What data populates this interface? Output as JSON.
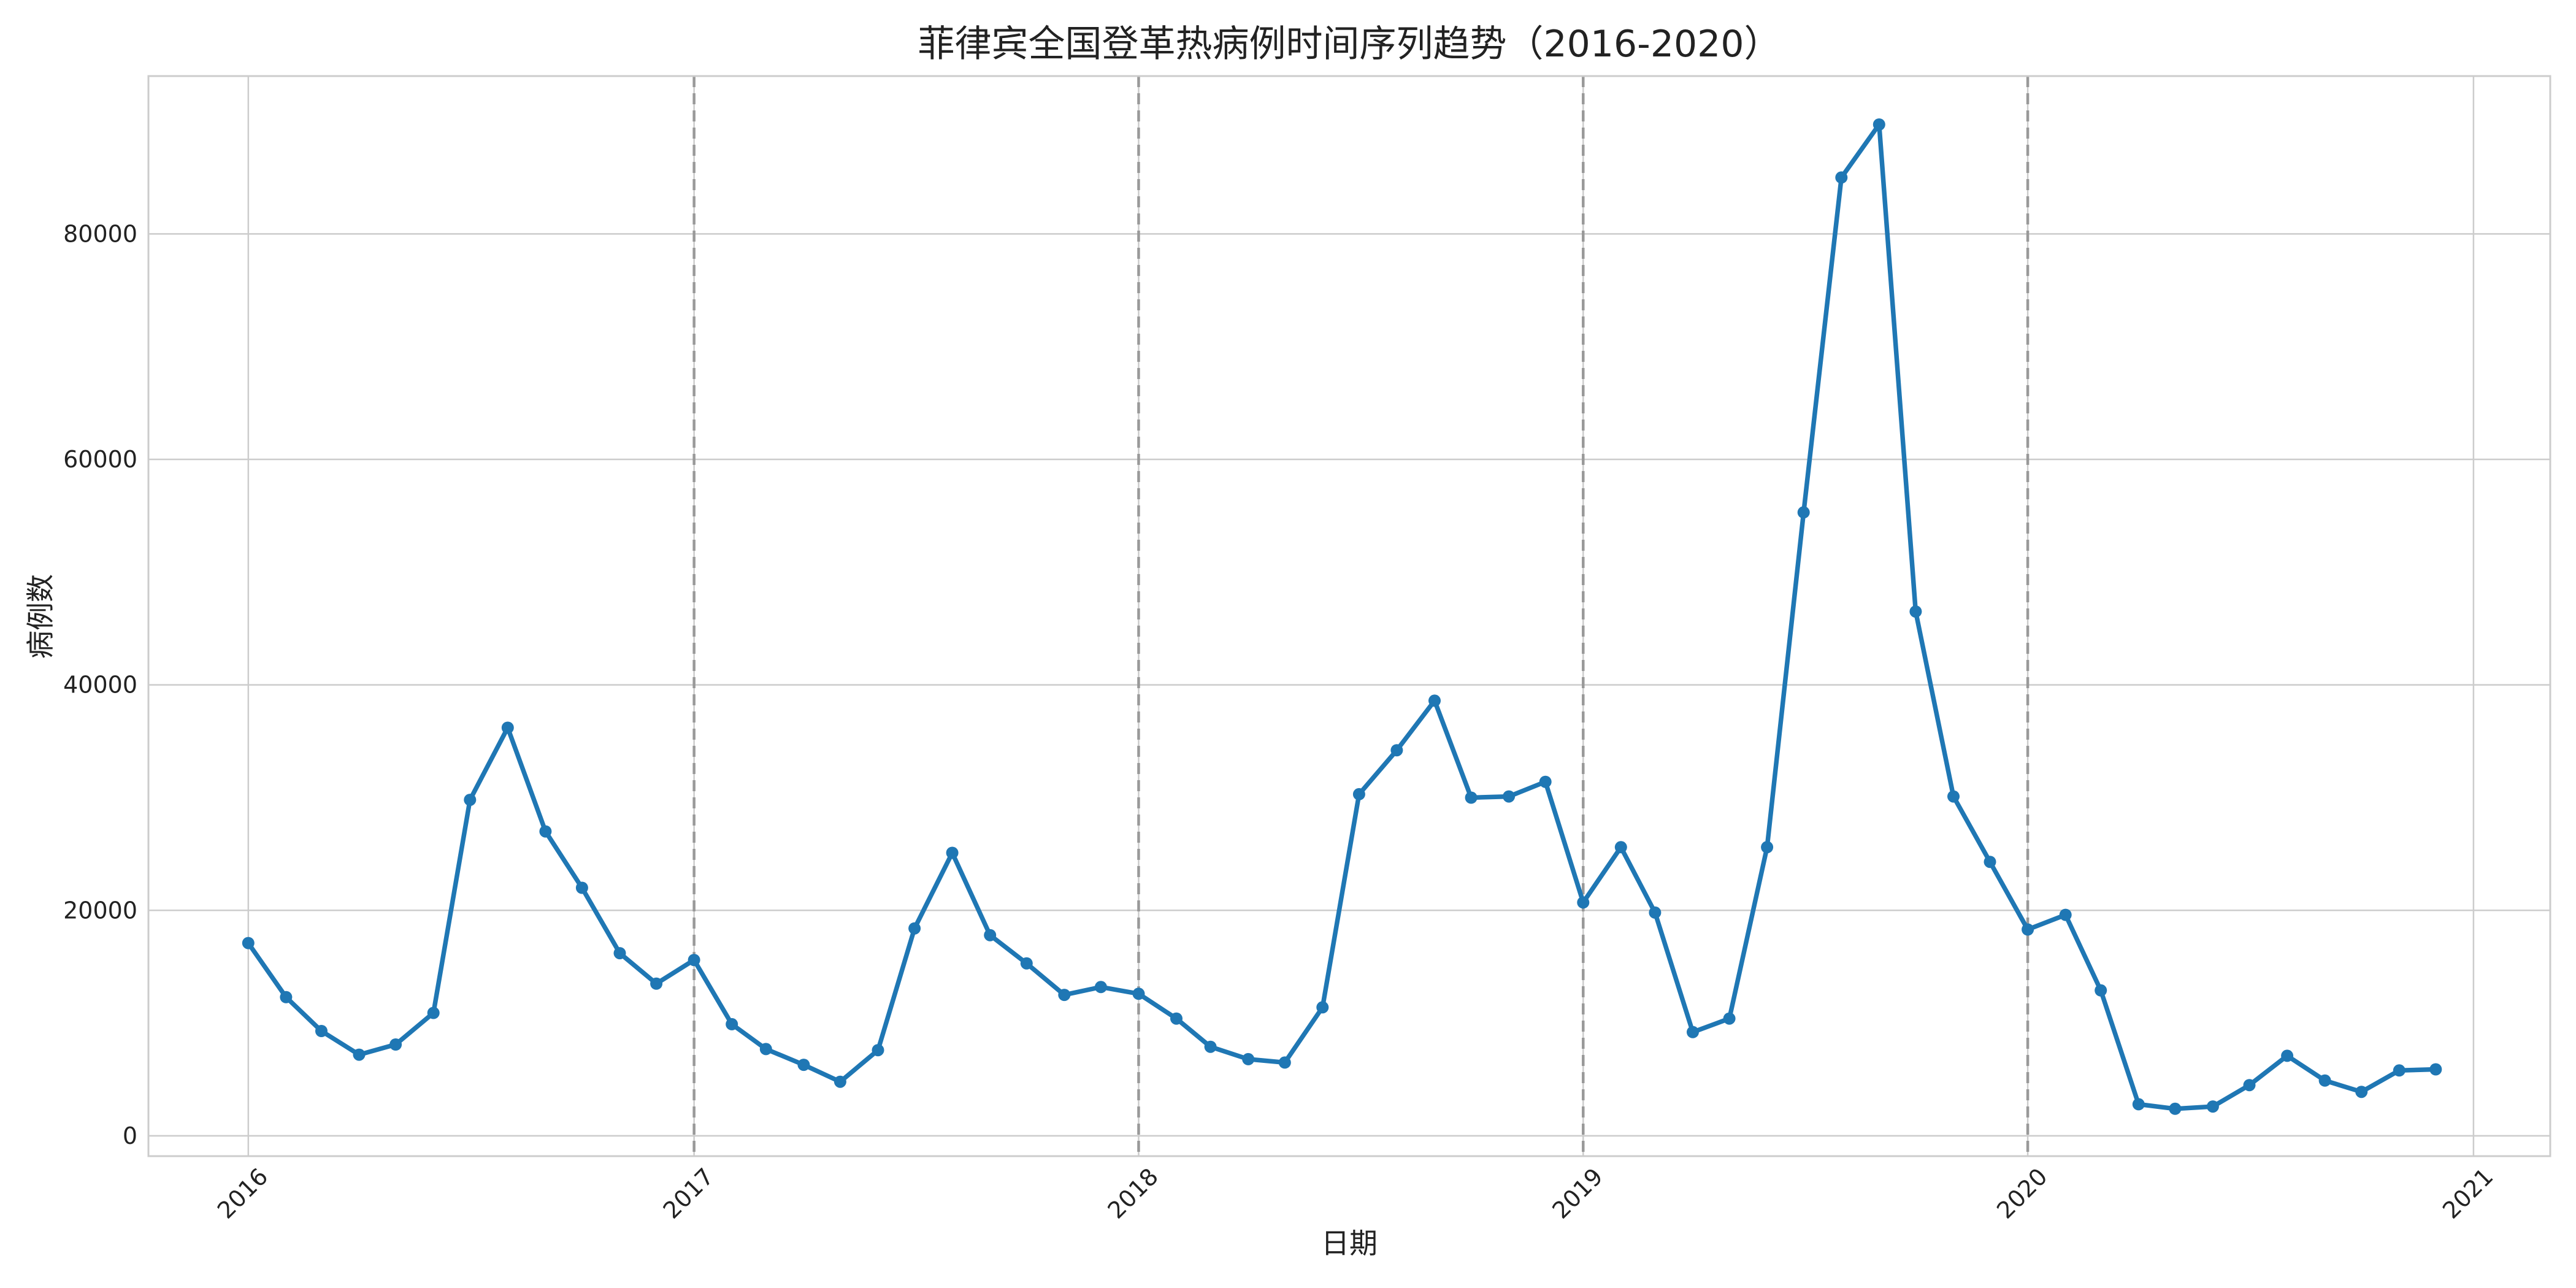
{
  "chart_data": {
    "type": "line",
    "title": "菲律宾全国登革热病例时间序列趋势（2016-2020）",
    "xlabel": "日期",
    "ylabel": "病例数",
    "x_ticks": [
      "2016",
      "2017",
      "2018",
      "2019",
      "2020",
      "2021"
    ],
    "y_ticks": [
      0,
      20000,
      40000,
      60000,
      80000
    ],
    "xlim": [
      "2015-10-11",
      "2021-03-05"
    ],
    "ylim": [
      -1800,
      94000
    ],
    "grid": true,
    "year_markers": [
      "2017-01-01",
      "2018-01-01",
      "2019-01-01",
      "2020-01-01"
    ],
    "series": [
      {
        "color": "#1f77b4",
        "x": [
          "2016-01-01",
          "2016-02-01",
          "2016-03-01",
          "2016-04-01",
          "2016-05-01",
          "2016-06-01",
          "2016-07-01",
          "2016-08-01",
          "2016-09-01",
          "2016-10-01",
          "2016-11-01",
          "2016-12-01",
          "2017-01-01",
          "2017-02-01",
          "2017-03-01",
          "2017-04-01",
          "2017-05-01",
          "2017-06-01",
          "2017-07-01",
          "2017-08-01",
          "2017-09-01",
          "2017-10-01",
          "2017-11-01",
          "2017-12-01",
          "2018-01-01",
          "2018-02-01",
          "2018-03-01",
          "2018-04-01",
          "2018-05-01",
          "2018-06-01",
          "2018-07-01",
          "2018-08-01",
          "2018-09-01",
          "2018-10-01",
          "2018-11-01",
          "2018-12-01",
          "2019-01-01",
          "2019-02-01",
          "2019-03-01",
          "2019-04-01",
          "2019-05-01",
          "2019-06-01",
          "2019-07-01",
          "2019-08-01",
          "2019-09-01",
          "2019-10-01",
          "2019-11-01",
          "2019-12-01",
          "2020-01-01",
          "2020-02-01",
          "2020-03-01",
          "2020-04-01",
          "2020-05-01",
          "2020-06-01",
          "2020-07-01",
          "2020-08-01",
          "2020-09-01",
          "2020-10-01",
          "2020-11-01",
          "2020-12-01"
        ],
        "values": [
          17100,
          12300,
          9300,
          7200,
          8100,
          10900,
          29800,
          36200,
          27000,
          22000,
          16200,
          13500,
          15600,
          9900,
          7700,
          6300,
          4800,
          7600,
          18400,
          25100,
          17800,
          15300,
          12500,
          13200,
          12600,
          10400,
          7900,
          6800,
          6500,
          11400,
          30300,
          34200,
          38600,
          30000,
          30100,
          31400,
          20700,
          25600,
          19800,
          9200,
          10400,
          25600,
          55300,
          85000,
          89700,
          46500,
          30100,
          24300,
          18300,
          19600,
          12900,
          2800,
          2400,
          2600,
          4500,
          7100,
          4900,
          3900,
          5800,
          5900
        ]
      }
    ]
  }
}
